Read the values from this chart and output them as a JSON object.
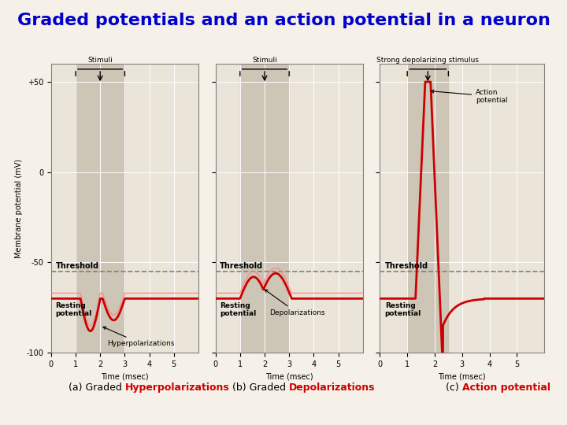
{
  "title": "Graded potentials and an action potential in a neuron",
  "title_color": "#0000CC",
  "title_fontsize": 16,
  "bg_color": "#F5F0E8",
  "plot_bg_color": "#EAE5D8",
  "stimuli_shade_color": "#C8C0B0",
  "threshold_mv": -55,
  "resting_mv": -70,
  "ylim": [
    -100,
    60
  ],
  "xlim": [
    0,
    6
  ],
  "yticks": [
    -100,
    -50,
    0,
    50
  ],
  "ytick_labels": [
    "-100",
    "-50",
    "0",
    "+50"
  ],
  "xticks": [
    0,
    1,
    2,
    3,
    4,
    5
  ],
  "xlabel": "Time (msec)",
  "ylabel": "Membrane potential (mV)",
  "panels": [
    {
      "label_normal": "(a) Graded ",
      "label_bold": "Hyperpolarizations",
      "label_color": "#CC0000",
      "stimuli_label": "Stimuli",
      "stimuli_x_start": 1.0,
      "stimuli_x_end": 3.0,
      "signal_type": "hyperpolarization"
    },
    {
      "label_normal": "(b) Graded ",
      "label_bold": "Depolarizations",
      "label_color": "#CC0000",
      "stimuli_label": "Stimuli",
      "stimuli_x_start": 1.0,
      "stimuli_x_end": 3.0,
      "signal_type": "depolarization"
    },
    {
      "label_normal": "(c) ",
      "label_bold": "Action potential",
      "label_color": "#CC0000",
      "stimuli_label": "Strong depolarizing stimulus",
      "stimuli_x_start": 1.0,
      "stimuli_x_end": 2.5,
      "signal_type": "action_potential"
    }
  ]
}
